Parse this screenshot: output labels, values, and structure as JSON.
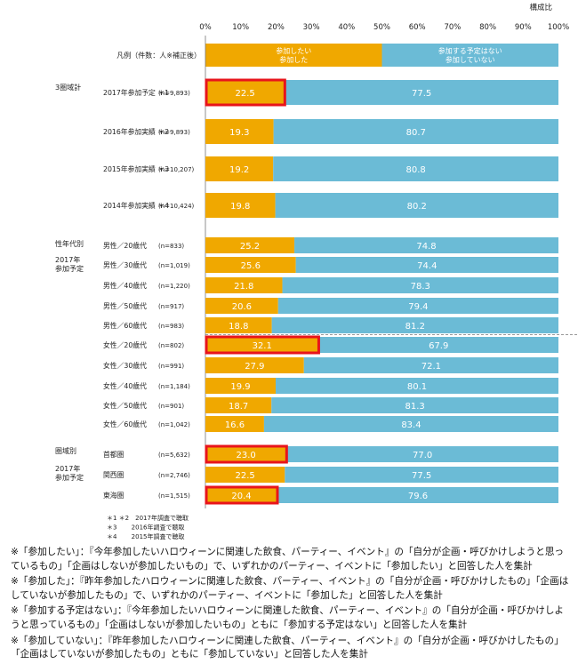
{
  "chart_data": {
    "type": "bar",
    "stacked": true,
    "orientation": "horizontal",
    "unit_label": "構成比",
    "x_ticks": [
      "0%",
      "10%",
      "20%",
      "30%",
      "40%",
      "50%",
      "60%",
      "70%",
      "80%",
      "90%",
      "100%"
    ],
    "xlim": [
      0,
      100
    ],
    "legend": {
      "caption": "凡例（件数：人※補正後）",
      "series": [
        {
          "name": "参加したい\n参加した",
          "color": "#F0A800"
        },
        {
          "name": "参加する予定はない\n参加していない",
          "color": "#6BBBD6"
        }
      ]
    },
    "groups": [
      {
        "label": "3圏域計",
        "rows": [
          {
            "label": "2017年参加予定 ＊1",
            "n": "(n=9,893)",
            "values": [
              22.5,
              77.5
            ],
            "highlight": true
          },
          {
            "label": "2016年参加実績 ＊2",
            "n": "(n=9,893)",
            "values": [
              19.3,
              80.7
            ],
            "highlight": false
          },
          {
            "label": "2015年参加実績 ＊3",
            "n": "(n=10,207)",
            "values": [
              19.2,
              80.8
            ],
            "highlight": false
          },
          {
            "label": "2014年参加実績 ＊4",
            "n": "(n=10,424)",
            "values": [
              19.8,
              80.2
            ],
            "highlight": false
          }
        ]
      },
      {
        "label": "性年代別",
        "sublabel": "2017年\n参加予定",
        "rows": [
          {
            "label": "男性／20歳代",
            "n": "(n=833)",
            "values": [
              25.2,
              74.8
            ],
            "highlight": false
          },
          {
            "label": "男性／30歳代",
            "n": "(n=1,019)",
            "values": [
              25.6,
              74.4
            ],
            "highlight": false
          },
          {
            "label": "男性／40歳代",
            "n": "(n=1,220)",
            "values": [
              21.8,
              78.3
            ],
            "highlight": false
          },
          {
            "label": "男性／50歳代",
            "n": "(n=917)",
            "values": [
              20.6,
              79.4
            ],
            "highlight": false
          },
          {
            "label": "男性／60歳代",
            "n": "(n=983)",
            "values": [
              18.8,
              81.2
            ],
            "highlight": false
          },
          {
            "label": "女性／20歳代",
            "n": "(n=802)",
            "values": [
              32.1,
              67.9
            ],
            "highlight": true
          },
          {
            "label": "女性／30歳代",
            "n": "(n=991)",
            "values": [
              27.9,
              72.1
            ],
            "highlight": false
          },
          {
            "label": "女性／40歳代",
            "n": "(n=1,184)",
            "values": [
              19.9,
              80.1
            ],
            "highlight": false
          },
          {
            "label": "女性／50歳代",
            "n": "(n=901)",
            "values": [
              18.7,
              81.3
            ],
            "highlight": false
          },
          {
            "label": "女性／60歳代",
            "n": "(n=1,042)",
            "values": [
              16.6,
              83.4
            ],
            "highlight": false
          }
        ]
      },
      {
        "label": "圏域別",
        "sublabel": "2017年\n参加予定",
        "rows": [
          {
            "label": "首都圏",
            "n": "(n=5,632)",
            "values": [
              23.0,
              77.0
            ],
            "highlight": true
          },
          {
            "label": "関西圏",
            "n": "(n=2,746)",
            "values": [
              22.5,
              77.5
            ],
            "highlight": false
          },
          {
            "label": "東海圏",
            "n": "(n=1,515)",
            "values": [
              20.4,
              79.6
            ],
            "highlight": true
          }
        ]
      }
    ],
    "survey_notes": [
      "＊1 ＊2　2017年調査で聴取",
      "＊3　　 2016年調査で聴取",
      "＊4　　 2015年調査で聴取"
    ]
  },
  "footnotes": [
    "※「参加したい」：『今年参加したいハロウィーンに関連した飲食、パーティー、イベント』の「自分が企画・呼びかけしようと思っているもの」「企画はしないが参加したいもの」で、いずれかのパーティー、イベントに「参加したい」と回答した人を集計",
    "※「参加した」：『昨年参加したハロウィーンに関連した飲食、パーティー、イベント』の「自分が企画・呼びかけしたもの」「企画はしていないが参加したもの」で、いずれかのパーティー、イベントに「参加した」と回答した人を集計",
    "※「参加する予定はない」：『今年参加したいハロウィーンに関連した飲食、パーティー、イベント』の「自分が企画・呼びかけしようと思っているもの」「企画はしないが参加したいもの」ともに「参加する予定はない」と回答した人を集計",
    "※「参加していない」：『昨年参加したハロウィーンに関連した飲食、パーティー、イベント』の「自分が企画・呼びかけしたもの」「企画はしていないが参加したもの」ともに「参加していない」と回答した人を集計"
  ],
  "colors": {
    "series1": "#F0A800",
    "series2": "#6BBBD6",
    "highlight": "#E8141B"
  }
}
